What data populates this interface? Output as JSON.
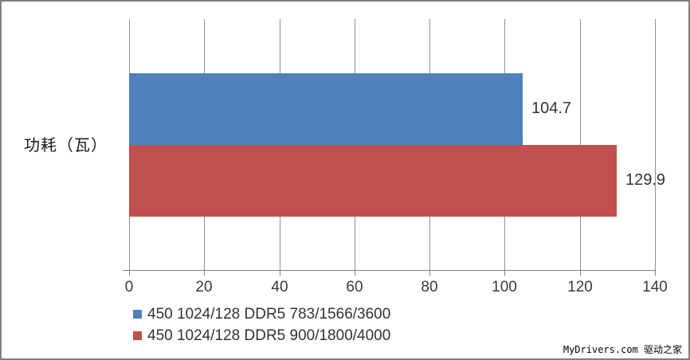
{
  "chart_data": {
    "type": "bar",
    "orientation": "horizontal",
    "title": "",
    "xlabel": "",
    "ylabel": "功耗（瓦）",
    "series": [
      {
        "name": "450 1024/128 DDR5 783/1566/3600",
        "value": 104.7,
        "value_label": "104.7",
        "color": "#4F81BD"
      },
      {
        "name": "450 1024/128 DDR5 900/1800/4000",
        "value": 129.9,
        "value_label": "129.9",
        "color": "#C0504D"
      }
    ],
    "xlim": [
      0,
      140
    ],
    "xticks": [
      0,
      20,
      40,
      60,
      80,
      100,
      120,
      140
    ],
    "grid": "vertical-gridlines-on",
    "legend_position": "bottom-left",
    "gridline_color": "#909090",
    "axis_color": "#7f7f7f"
  },
  "watermark": "MyDrivers.com 驱动之家"
}
